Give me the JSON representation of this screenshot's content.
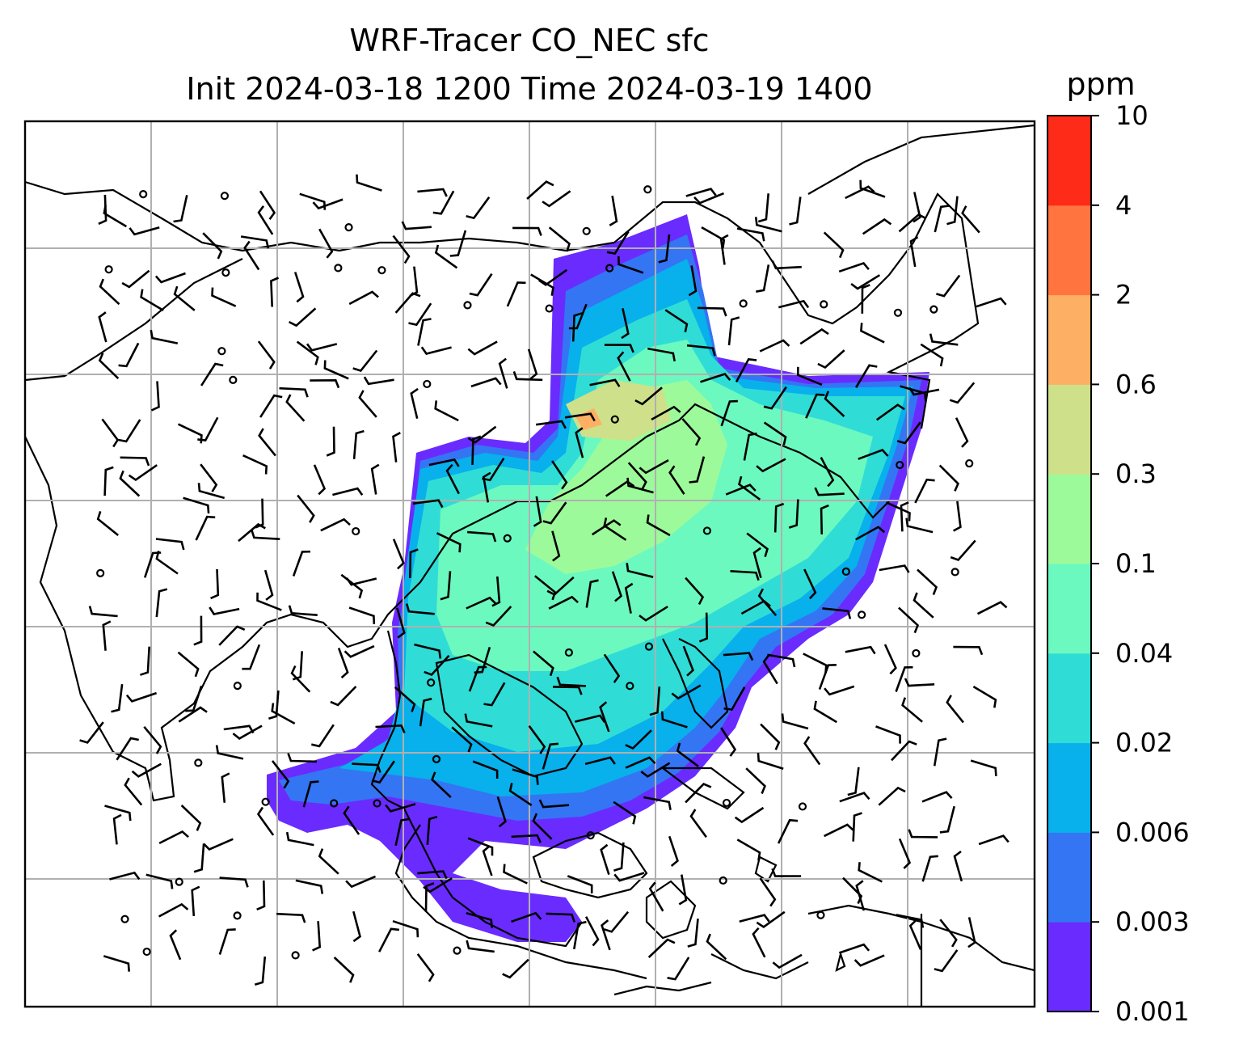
{
  "title_line1": "WRF-Tracer CO_NEC sfc",
  "title_line2": "Init 2024-03-18 1200 Time 2024-03-19 1400",
  "colorbar": {
    "unit": "ppm",
    "ticks": [
      "0.001",
      "0.003",
      "0.006",
      "0.02",
      "0.04",
      "0.1",
      "0.3",
      "0.6",
      "2",
      "4",
      "10"
    ],
    "colors": [
      "#6a2bff",
      "#3475f4",
      "#08b0ec",
      "#2fddd6",
      "#6cf9bf",
      "#9dfa9a",
      "#cfe08a",
      "#fdb063",
      "#ff743f",
      "#ff2b19"
    ]
  },
  "chart_data": {
    "type": "heatmap",
    "variable": "CO_NEC",
    "level": "sfc",
    "units": "ppm",
    "init": "2024-03-18 1200",
    "valid": "2024-03-19 1400",
    "levels": [
      0.001,
      0.003,
      0.006,
      0.02,
      0.04,
      0.1,
      0.3,
      0.6,
      2,
      4,
      10
    ],
    "gridlines": true,
    "overlays": [
      "coastlines",
      "country borders",
      "wind barbs"
    ],
    "dominant_values": {
      "northeast_china_source": "0.1-0.6",
      "southern_china_inland": "0.04-0.1",
      "south_china_sea": "0.006-0.04",
      "plume_edges": "0.001-0.006"
    }
  }
}
